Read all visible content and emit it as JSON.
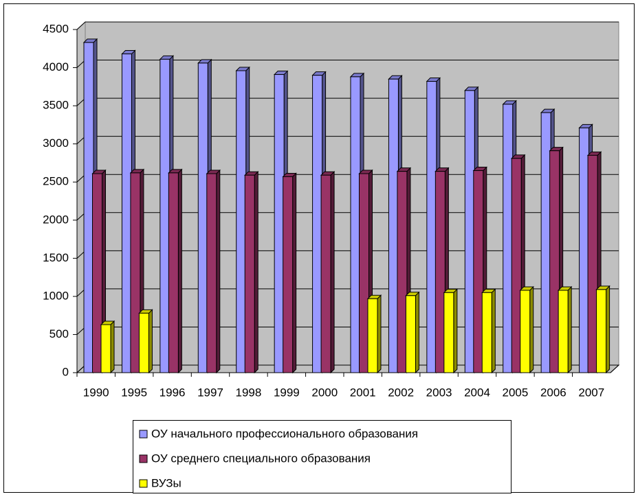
{
  "chart_data": {
    "type": "bar3d",
    "categories": [
      "1990",
      "1995",
      "1996",
      "1997",
      "1998",
      "1999",
      "2000",
      "2001",
      "2002",
      "2003",
      "2004",
      "2005",
      "2006",
      "2007"
    ],
    "series": [
      {
        "name": "ОУ начального профессионального образования",
        "color": "#9999ff",
        "values": [
          4330,
          4180,
          4110,
          4060,
          3960,
          3910,
          3900,
          3880,
          3850,
          3820,
          3700,
          3520,
          3410,
          3210
        ]
      },
      {
        "name": "ОУ среднего специального образования",
        "color": "#993366",
        "values": [
          2610,
          2620,
          2620,
          2610,
          2590,
          2570,
          2590,
          2610,
          2640,
          2640,
          2650,
          2810,
          2910,
          2850
        ]
      },
      {
        "name": "ВУЗы",
        "color": "#ffff00",
        "values": [
          630,
          780,
          null,
          null,
          null,
          null,
          null,
          970,
          1010,
          1050,
          1050,
          1080,
          1080,
          1090
        ]
      }
    ],
    "ylim": [
      0,
      4500
    ],
    "yticks": [
      0,
      500,
      1000,
      1500,
      2000,
      2500,
      3000,
      3500,
      4000,
      4500
    ],
    "grid": true,
    "legend": "bottom",
    "wall_color": "#c0c0c0"
  }
}
